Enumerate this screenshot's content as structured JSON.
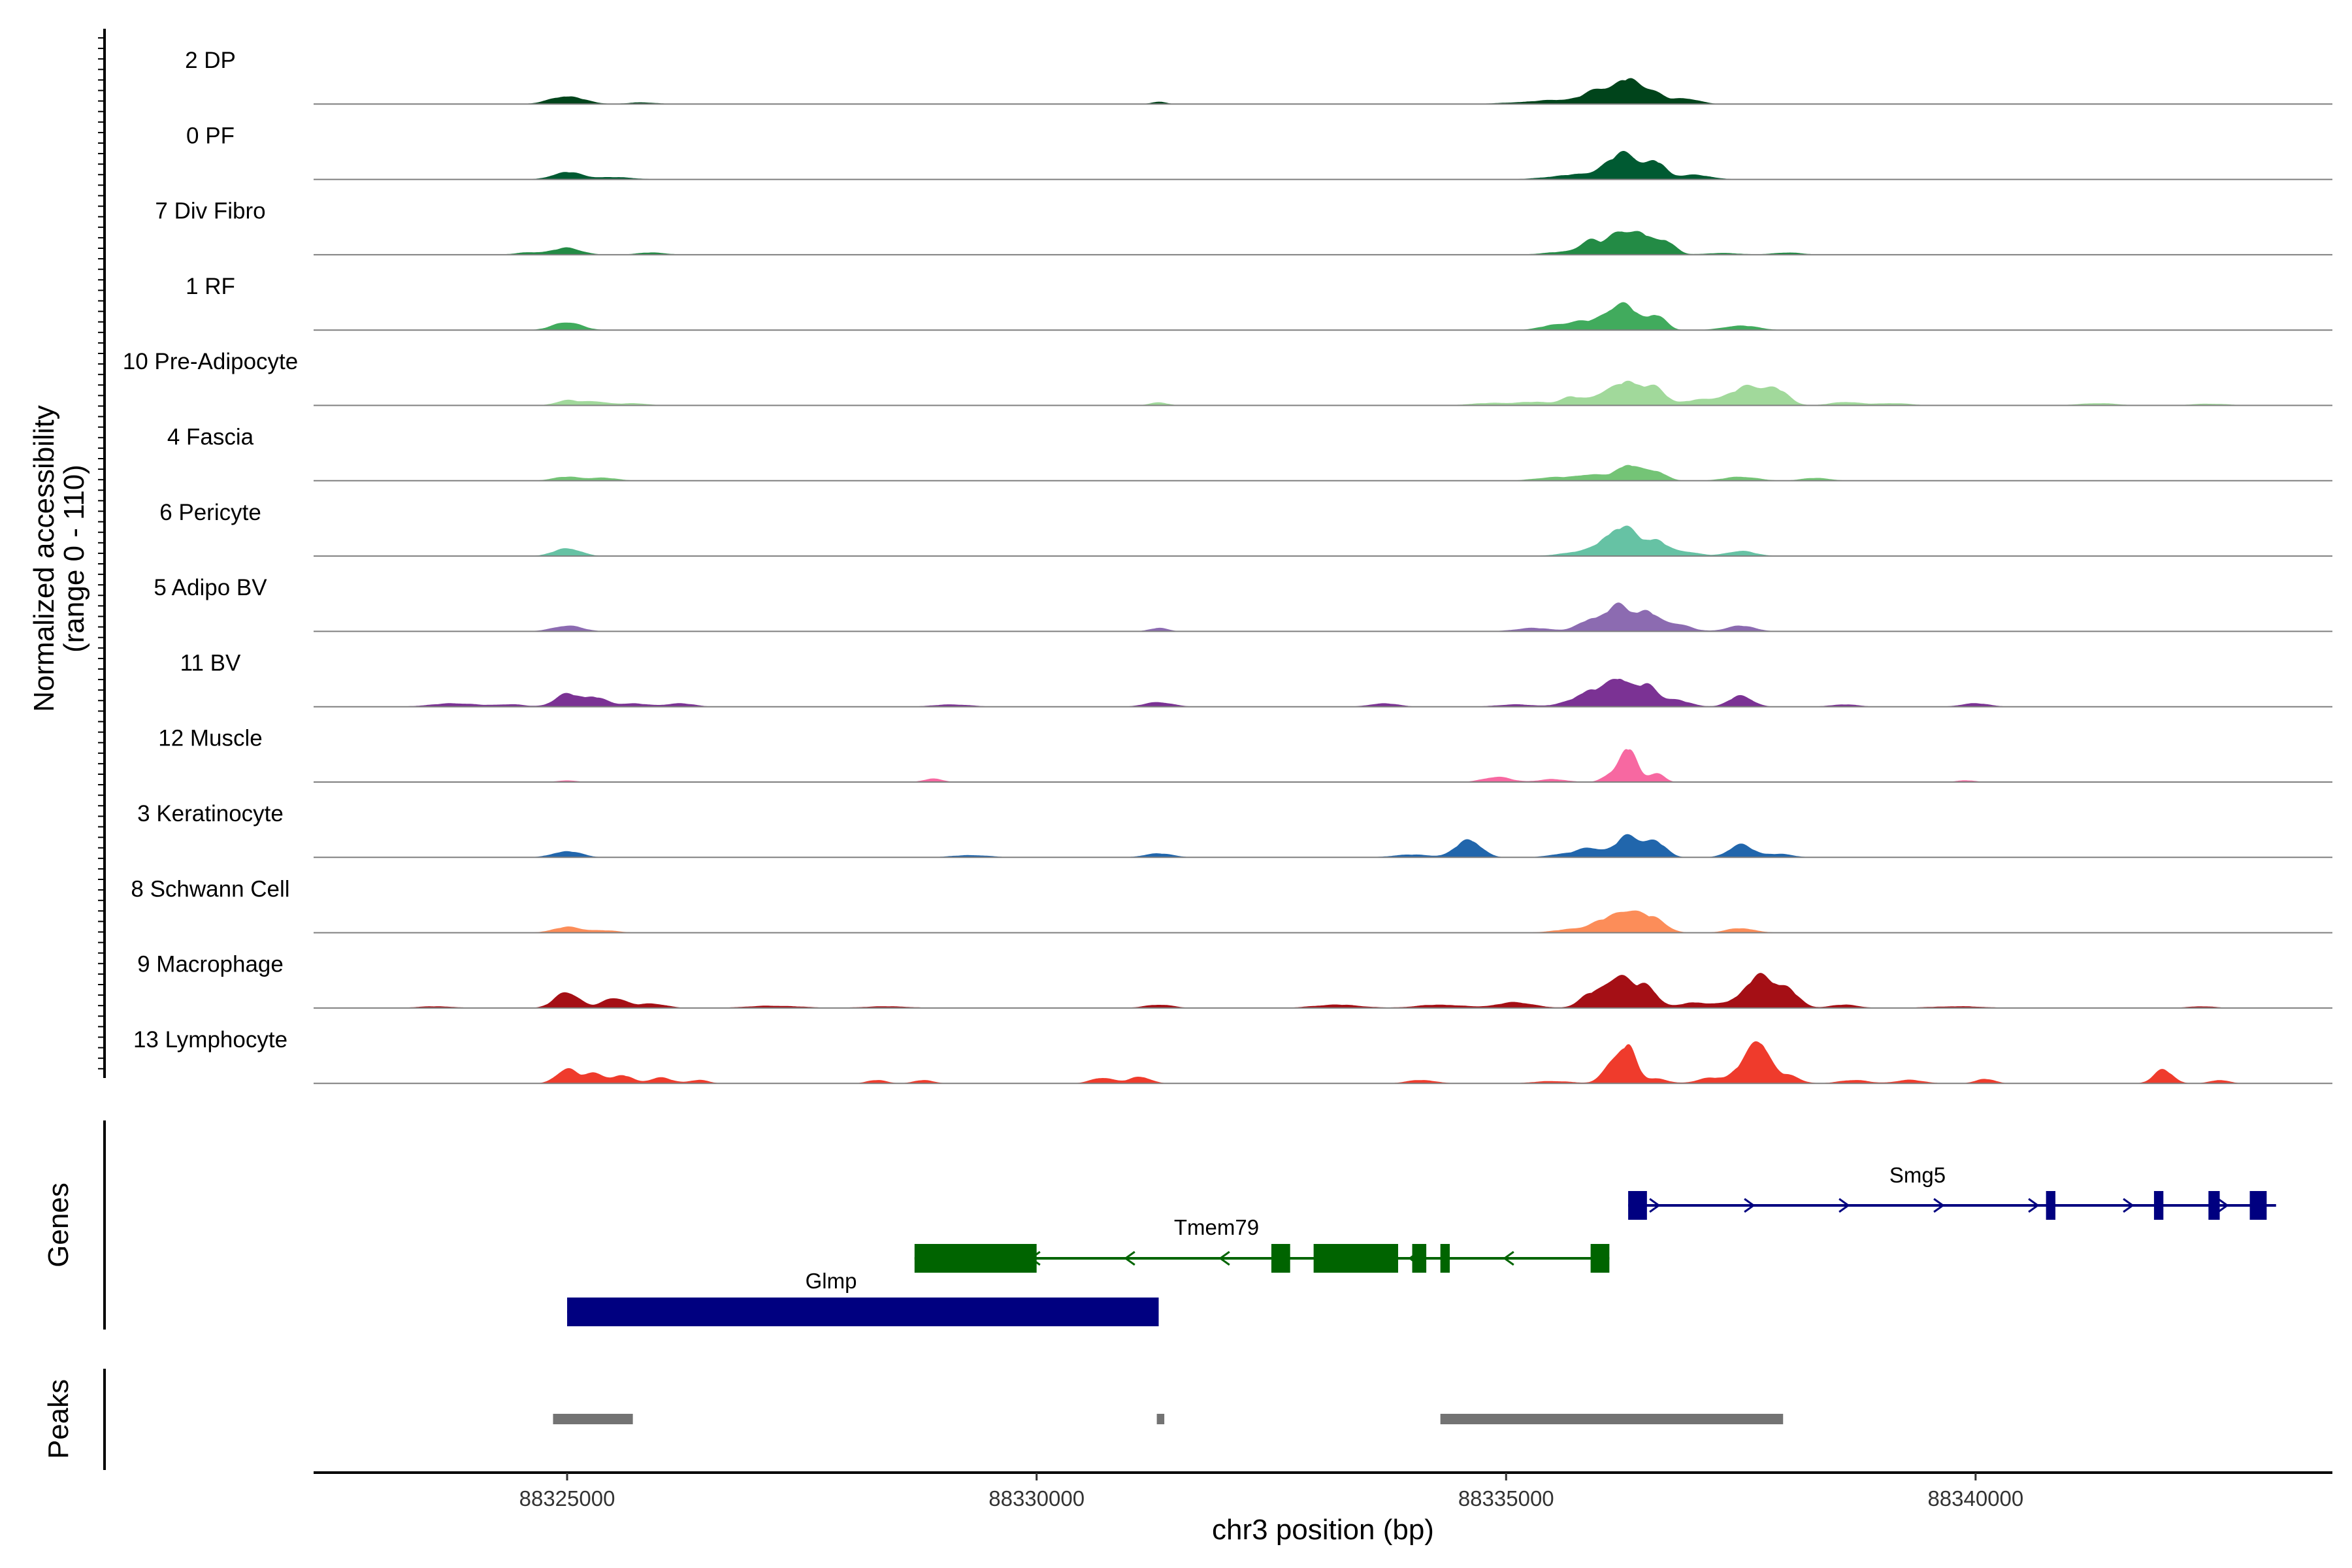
{
  "chart_data": {
    "type": "area",
    "title": "",
    "xlabel": "chr3 position (bp)",
    "ylabel_line1": "Normalized accessibility",
    "ylabel_line2": "(range 0 - 110)",
    "xlim": [
      88322300,
      88343800
    ],
    "ylim": [
      0,
      110
    ],
    "x_ticks": [
      88325000,
      88330000,
      88335000,
      88340000
    ],
    "x_tick_labels": [
      "88325000",
      "88330000",
      "88335000",
      "88340000"
    ],
    "series": [
      {
        "name": "2 DP",
        "color": "#00441b",
        "peaks": [
          [
            88325000,
            14,
            180
          ],
          [
            88335700,
            8,
            450
          ],
          [
            88336000,
            20,
            140
          ],
          [
            88336300,
            38,
            120
          ],
          [
            88336550,
            20,
            110
          ],
          [
            88336900,
            10,
            150
          ],
          [
            88331300,
            4,
            80
          ],
          [
            88325800,
            3,
            150
          ]
        ]
      },
      {
        "name": "0 PF",
        "color": "#005a32",
        "peaks": [
          [
            88325000,
            13,
            150
          ],
          [
            88335800,
            9,
            300
          ],
          [
            88336100,
            18,
            120
          ],
          [
            88336300,
            40,
            120
          ],
          [
            88336600,
            30,
            100
          ],
          [
            88337000,
            8,
            180
          ],
          [
            88325500,
            4,
            200
          ]
        ]
      },
      {
        "name": "7 Div Fibro",
        "color": "#238b45",
        "peaks": [
          [
            88324600,
            4,
            150
          ],
          [
            88325000,
            12,
            150
          ],
          [
            88325900,
            4,
            150
          ],
          [
            88335600,
            5,
            200
          ],
          [
            88335900,
            24,
            110
          ],
          [
            88336200,
            40,
            110
          ],
          [
            88336450,
            34,
            110
          ],
          [
            88336700,
            24,
            100
          ],
          [
            88338000,
            4,
            150
          ],
          [
            88337300,
            3,
            200
          ]
        ]
      },
      {
        "name": "1 RF",
        "color": "#41ab5d",
        "peaks": [
          [
            88325000,
            14,
            150
          ],
          [
            88335500,
            8,
            150
          ],
          [
            88335800,
            14,
            140
          ],
          [
            88336100,
            26,
            120
          ],
          [
            88336300,
            36,
            120
          ],
          [
            88336600,
            26,
            100
          ],
          [
            88337500,
            8,
            180
          ]
        ]
      },
      {
        "name": "10 Pre-Adipocyte",
        "color": "#a1d99b",
        "peaks": [
          [
            88325000,
            9,
            120
          ],
          [
            88325300,
            7,
            120
          ],
          [
            88325700,
            4,
            150
          ],
          [
            88334800,
            4,
            200
          ],
          [
            88335300,
            6,
            200
          ],
          [
            88335700,
            14,
            110
          ],
          [
            88336000,
            16,
            120
          ],
          [
            88336300,
            42,
            150
          ],
          [
            88336600,
            26,
            110
          ],
          [
            88337000,
            8,
            150
          ],
          [
            88337300,
            10,
            150
          ],
          [
            88337600,
            32,
            160
          ],
          [
            88337900,
            24,
            120
          ],
          [
            88338600,
            6,
            150
          ],
          [
            88339100,
            4,
            200
          ],
          [
            88341300,
            4,
            200
          ],
          [
            88342500,
            3,
            200
          ],
          [
            88331300,
            5,
            100
          ]
        ]
      },
      {
        "name": "4 Fascia",
        "color": "#74c476",
        "peaks": [
          [
            88325000,
            7,
            150
          ],
          [
            88325400,
            5,
            150
          ],
          [
            88335500,
            6,
            200
          ],
          [
            88335900,
            10,
            150
          ],
          [
            88336300,
            28,
            130
          ],
          [
            88336600,
            16,
            110
          ],
          [
            88337500,
            7,
            180
          ],
          [
            88338300,
            5,
            150
          ]
        ]
      },
      {
        "name": "6 Pericyte",
        "color": "#66c2a4",
        "peaks": [
          [
            88325000,
            14,
            140
          ],
          [
            88335800,
            8,
            200
          ],
          [
            88336100,
            26,
            130
          ],
          [
            88336300,
            40,
            130
          ],
          [
            88336600,
            26,
            110
          ],
          [
            88336900,
            8,
            150
          ],
          [
            88337500,
            9,
            150
          ]
        ]
      },
      {
        "name": "5 Adipo BV",
        "color": "#8c6bb1",
        "peaks": [
          [
            88325000,
            10,
            160
          ],
          [
            88331300,
            6,
            100
          ],
          [
            88335300,
            6,
            200
          ],
          [
            88335900,
            20,
            130
          ],
          [
            88336200,
            44,
            130
          ],
          [
            88336500,
            32,
            110
          ],
          [
            88336800,
            14,
            150
          ],
          [
            88337500,
            10,
            150
          ]
        ]
      },
      {
        "name": "11 BV",
        "color": "#7b3294",
        "peaks": [
          [
            88323800,
            6,
            250
          ],
          [
            88324400,
            4,
            150
          ],
          [
            88325000,
            22,
            130
          ],
          [
            88325300,
            16,
            120
          ],
          [
            88325700,
            6,
            150
          ],
          [
            88326200,
            6,
            150
          ],
          [
            88329100,
            4,
            200
          ],
          [
            88331300,
            8,
            150
          ],
          [
            88333700,
            6,
            150
          ],
          [
            88335100,
            4,
            200
          ],
          [
            88335700,
            8,
            150
          ],
          [
            88335900,
            24,
            120
          ],
          [
            88336200,
            50,
            130
          ],
          [
            88336500,
            34,
            110
          ],
          [
            88336800,
            12,
            150
          ],
          [
            88337500,
            20,
            120
          ],
          [
            88340000,
            6,
            150
          ],
          [
            88338600,
            4,
            150
          ]
        ]
      },
      {
        "name": "12 Muscle",
        "color": "#f768a1",
        "peaks": [
          [
            88325000,
            3,
            100
          ],
          [
            88328900,
            6,
            100
          ],
          [
            88334900,
            9,
            150
          ],
          [
            88335500,
            5,
            150
          ],
          [
            88336100,
            12,
            80
          ],
          [
            88336300,
            60,
            90
          ],
          [
            88336600,
            16,
            80
          ],
          [
            88339900,
            3,
            100
          ]
        ]
      },
      {
        "name": "3 Keratinocyte",
        "color": "#2166ac",
        "peaks": [
          [
            88325000,
            11,
            150
          ],
          [
            88329300,
            4,
            200
          ],
          [
            88331300,
            7,
            150
          ],
          [
            88334000,
            5,
            200
          ],
          [
            88334600,
            32,
            130
          ],
          [
            88335600,
            6,
            150
          ],
          [
            88335900,
            16,
            130
          ],
          [
            88336300,
            38,
            130
          ],
          [
            88336600,
            26,
            110
          ],
          [
            88337500,
            22,
            130
          ],
          [
            88337900,
            6,
            150
          ]
        ]
      },
      {
        "name": "8 Schwann Cell",
        "color": "#fc8d59",
        "peaks": [
          [
            88325000,
            10,
            150
          ],
          [
            88325400,
            4,
            150
          ],
          [
            88335700,
            6,
            200
          ],
          [
            88336000,
            14,
            130
          ],
          [
            88336300,
            38,
            160
          ],
          [
            88336600,
            20,
            120
          ],
          [
            88337500,
            8,
            150
          ]
        ]
      },
      {
        "name": "9 Macrophage",
        "color": "#a50f15",
        "peaks": [
          [
            88323600,
            3,
            200
          ],
          [
            88325000,
            28,
            130
          ],
          [
            88325500,
            18,
            120
          ],
          [
            88325900,
            8,
            150
          ],
          [
            88327200,
            4,
            300
          ],
          [
            88328400,
            3,
            250
          ],
          [
            88331300,
            6,
            150
          ],
          [
            88333200,
            6,
            250
          ],
          [
            88334300,
            6,
            250
          ],
          [
            88335100,
            10,
            200
          ],
          [
            88335900,
            24,
            120
          ],
          [
            88336200,
            56,
            130
          ],
          [
            88336500,
            38,
            110
          ],
          [
            88337000,
            10,
            150
          ],
          [
            88337400,
            8,
            150
          ],
          [
            88337700,
            54,
            150
          ],
          [
            88338000,
            30,
            120
          ],
          [
            88338600,
            6,
            150
          ],
          [
            88339800,
            3,
            300
          ],
          [
            88342400,
            3,
            150
          ]
        ]
      },
      {
        "name": "13 Lymphocyte",
        "color": "#ef3b2c",
        "peaks": [
          [
            88325000,
            26,
            110
          ],
          [
            88325300,
            18,
            100
          ],
          [
            88325600,
            14,
            100
          ],
          [
            88326000,
            10,
            120
          ],
          [
            88326400,
            6,
            100
          ],
          [
            88328300,
            6,
            100
          ],
          [
            88328800,
            6,
            100
          ],
          [
            88330700,
            10,
            120
          ],
          [
            88331100,
            12,
            110
          ],
          [
            88334100,
            6,
            150
          ],
          [
            88335500,
            4,
            200
          ],
          [
            88336100,
            30,
            90
          ],
          [
            88336300,
            66,
            90
          ],
          [
            88336600,
            8,
            120
          ],
          [
            88337200,
            10,
            150
          ],
          [
            88337500,
            22,
            100
          ],
          [
            88337700,
            72,
            110
          ],
          [
            88338000,
            14,
            120
          ],
          [
            88338700,
            6,
            150
          ],
          [
            88339300,
            6,
            150
          ],
          [
            88340100,
            8,
            100
          ],
          [
            88342000,
            24,
            100
          ],
          [
            88342600,
            6,
            100
          ]
        ]
      }
    ],
    "genes": [
      {
        "name": "Glmp",
        "color": "#000080",
        "strand": "+",
        "start": 88325000,
        "end": 88331300,
        "exons": [
          [
            88325000,
            88331300
          ]
        ]
      },
      {
        "name": "Tmem79",
        "color": "#006400",
        "strand": "-",
        "start": 88328700,
        "end": 88336100,
        "exons": [
          [
            88328700,
            88330000
          ],
          [
            88332500,
            88332700
          ],
          [
            88332950,
            88333850
          ],
          [
            88334000,
            88334150
          ],
          [
            88334300,
            88334400
          ],
          [
            88335900,
            88336100
          ]
        ]
      },
      {
        "name": "Smg5",
        "color": "#000080",
        "strand": "+",
        "start": 88336300,
        "end": 88343200,
        "exons": [
          [
            88336300,
            88336500
          ],
          [
            88340750,
            88340850
          ],
          [
            88341900,
            88342000
          ],
          [
            88342480,
            88342600
          ],
          [
            88342920,
            88343100
          ]
        ]
      }
    ],
    "peaks_track": [
      [
        88324850,
        88325700
      ],
      [
        88331280,
        88331360
      ],
      [
        88334300,
        88337950
      ]
    ],
    "genes_track_label": "Genes",
    "peaks_track_label": "Peaks"
  }
}
